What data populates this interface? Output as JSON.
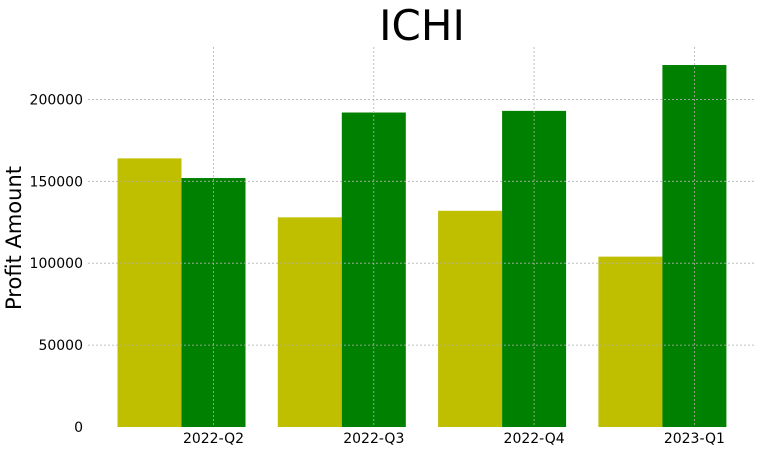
{
  "chart_data": {
    "type": "bar",
    "title": "ICHI",
    "xlabel": "",
    "ylabel": "Profit Amount",
    "categories": [
      "2022-Q2",
      "2022-Q3",
      "2022-Q4",
      "2023-Q1"
    ],
    "series": [
      {
        "color": "#bfbf00",
        "values": [
          164000,
          128000,
          132000,
          104000
        ]
      },
      {
        "color": "#008000",
        "values": [
          152000,
          192000,
          193000,
          221000
        ]
      }
    ],
    "yticks": [
      0,
      50000,
      100000,
      150000,
      200000
    ],
    "ylim": [
      0,
      232000
    ],
    "grid": true,
    "legend": "none"
  }
}
